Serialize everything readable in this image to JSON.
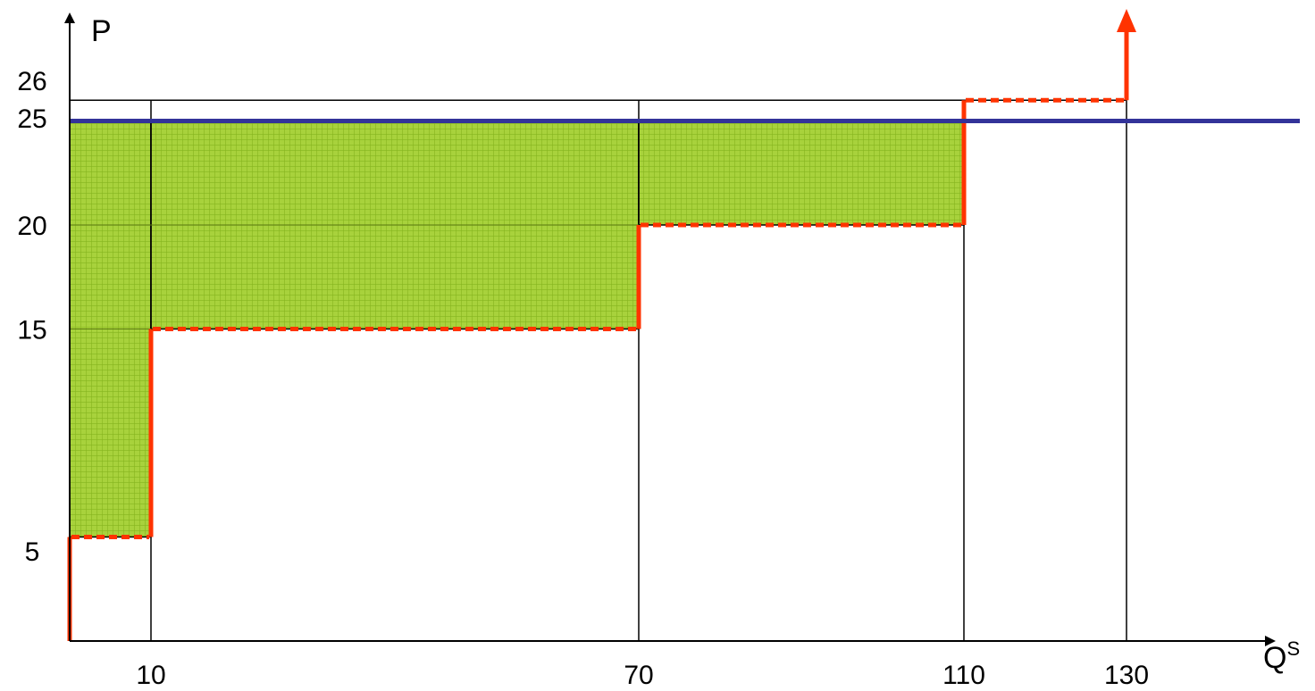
{
  "chart_data": {
    "type": "line",
    "title": "",
    "xlabel": "Q",
    "xlabel_superscript": "S",
    "ylabel": "P",
    "x_ticks": [
      {
        "value": 10,
        "label": "10"
      },
      {
        "value": 70,
        "label": "70"
      },
      {
        "value": 110,
        "label": "110"
      },
      {
        "value": 130,
        "label": "130"
      }
    ],
    "y_ticks": [
      {
        "value": 5,
        "label": "5"
      },
      {
        "value": 15,
        "label": "15"
      },
      {
        "value": 20,
        "label": "20"
      },
      {
        "value": 25,
        "label": "25"
      },
      {
        "value": 26,
        "label": "26"
      }
    ],
    "xlim": [
      0,
      152
    ],
    "ylim": [
      0,
      29.5
    ],
    "demand_price": 25,
    "supply_steps": [
      {
        "q_from": 0,
        "q_to": 10,
        "price": 5
      },
      {
        "q_from": 10,
        "q_to": 70,
        "price": 15
      },
      {
        "q_from": 70,
        "q_to": 110,
        "price": 20
      },
      {
        "q_from": 110,
        "q_to": 130,
        "price": 26
      }
    ],
    "surplus_blocks": [
      {
        "q_from": 0,
        "q_to": 10,
        "p_from": 5,
        "p_to": 25
      },
      {
        "q_from": 10,
        "q_to": 70,
        "p_from": 15,
        "p_to": 25
      },
      {
        "q_from": 70,
        "q_to": 110,
        "p_from": 20,
        "p_to": 25
      }
    ],
    "colors": {
      "supply": "#ff3300",
      "demand": "#333399",
      "surplus_fill": "#99cc33",
      "guide": "#000000",
      "axis": "#000000"
    }
  }
}
